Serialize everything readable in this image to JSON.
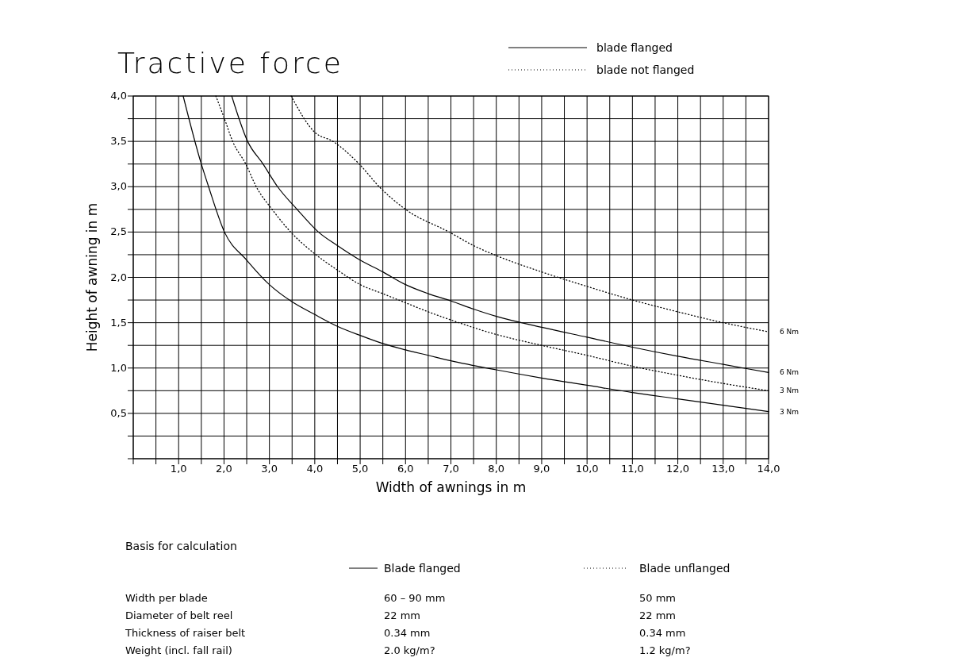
{
  "chart_data": {
    "type": "line",
    "title": "Tractive force",
    "xlabel": "Width of awnings in m",
    "ylabel": "Height of awning in m",
    "xlim": [
      0,
      14
    ],
    "ylim": [
      0,
      4
    ],
    "xticks": [
      {
        "value": 0,
        "label": null
      },
      {
        "value": 0.5,
        "label": null
      },
      {
        "value": 1,
        "label": "1,0"
      },
      {
        "value": 1.5,
        "label": null
      },
      {
        "value": 2,
        "label": "2,0"
      },
      {
        "value": 2.5,
        "label": null
      },
      {
        "value": 3,
        "label": "3,0"
      },
      {
        "value": 3.5,
        "label": null
      },
      {
        "value": 4,
        "label": "4,0"
      },
      {
        "value": 4.5,
        "label": null
      },
      {
        "value": 5,
        "label": "5,0"
      },
      {
        "value": 5.5,
        "label": null
      },
      {
        "value": 6,
        "label": "6,0"
      },
      {
        "value": 6.5,
        "label": null
      },
      {
        "value": 7,
        "label": "7,0"
      },
      {
        "value": 7.5,
        "label": null
      },
      {
        "value": 8,
        "label": "8,0"
      },
      {
        "value": 8.5,
        "label": null
      },
      {
        "value": 9,
        "label": "9,0"
      },
      {
        "value": 9.5,
        "label": null
      },
      {
        "value": 10,
        "label": "10,0"
      },
      {
        "value": 10.5,
        "label": null
      },
      {
        "value": 11,
        "label": "11,0"
      },
      {
        "value": 11.5,
        "label": null
      },
      {
        "value": 12,
        "label": "12,0"
      },
      {
        "value": 12.5,
        "label": null
      },
      {
        "value": 13,
        "label": "13,0"
      },
      {
        "value": 13.5,
        "label": null
      },
      {
        "value": 14,
        "label": "14,0"
      }
    ],
    "yticks": [
      {
        "value": 0,
        "label": null
      },
      {
        "value": 0.25,
        "label": null
      },
      {
        "value": 0.5,
        "label": "0,5"
      },
      {
        "value": 0.75,
        "label": null
      },
      {
        "value": 1,
        "label": "1,0"
      },
      {
        "value": 1.25,
        "label": null
      },
      {
        "value": 1.5,
        "label": "1,5"
      },
      {
        "value": 1.75,
        "label": null
      },
      {
        "value": 2,
        "label": "2,0"
      },
      {
        "value": 2.25,
        "label": null
      },
      {
        "value": 2.5,
        "label": "2,5"
      },
      {
        "value": 2.75,
        "label": null
      },
      {
        "value": 3,
        "label": "3,0"
      },
      {
        "value": 3.25,
        "label": null
      },
      {
        "value": 3.5,
        "label": "3,5"
      },
      {
        "value": 3.75,
        "label": null
      },
      {
        "value": 4,
        "label": "4,0"
      }
    ],
    "grid": true,
    "marker": "none",
    "series": [
      {
        "name": "3 Nm",
        "color": "#000000",
        "line_style": "solid",
        "x": [
          1.1,
          1.5,
          1.66,
          2.01,
          2.5,
          3,
          3.5,
          4,
          4.5,
          5,
          5.5,
          6,
          6.5,
          7,
          8,
          9,
          10,
          11,
          12,
          13,
          14
        ],
        "values": [
          4,
          3.25,
          3,
          2.5,
          2.19,
          1.92,
          1.73,
          1.59,
          1.46,
          1.36,
          1.27,
          1.2,
          1.14,
          1.08,
          0.98,
          0.89,
          0.81,
          0.73,
          0.66,
          0.59,
          0.52
        ]
      },
      {
        "name": "6 Nm",
        "color": "#000000",
        "line_style": "solid",
        "x": [
          2.17,
          2.52,
          2.86,
          3.18,
          3.61,
          4.08,
          4.5,
          5,
          5.5,
          6,
          6.5,
          7,
          7.5,
          8,
          9,
          10,
          11,
          12,
          13,
          14
        ],
        "values": [
          4,
          3.5,
          3.25,
          3,
          2.75,
          2.5,
          2.35,
          2.19,
          2.06,
          1.92,
          1.82,
          1.74,
          1.65,
          1.57,
          1.45,
          1.34,
          1.23,
          1.13,
          1.04,
          0.95
        ]
      },
      {
        "name": "3 Nm",
        "color": "#000000",
        "line_style": "dotted",
        "x": [
          1.82,
          2.01,
          2.19,
          2.48,
          2.71,
          3.06,
          3.47,
          4,
          4.5,
          5,
          5.5,
          6,
          6.5,
          7,
          8,
          9,
          10,
          11,
          12,
          13,
          14
        ],
        "values": [
          4,
          3.75,
          3.5,
          3.25,
          3,
          2.75,
          2.5,
          2.26,
          2.08,
          1.92,
          1.82,
          1.72,
          1.62,
          1.53,
          1.37,
          1.25,
          1.14,
          1.02,
          0.92,
          0.83,
          0.75
        ]
      },
      {
        "name": "6 Nm",
        "color": "#000000",
        "line_style": "dotted",
        "x": [
          3.48,
          4,
          4.4,
          4.98,
          5.42,
          6,
          6.96,
          7.5,
          8,
          9,
          10,
          11,
          12,
          13,
          14
        ],
        "values": [
          4,
          3.6,
          3.5,
          3.25,
          3,
          2.75,
          2.5,
          2.35,
          2.24,
          2.06,
          1.9,
          1.75,
          1.62,
          1.5,
          1.4
        ]
      }
    ],
    "annotations": [
      "blade flanged",
      "blade not flanged",
      "Basis for calculation",
      "Blade flanged",
      "Blade unflanged",
      "Width per blade",
      "60 – 90 mm",
      "50 mm",
      "Diameter of belt reel",
      "22 mm",
      "22 mm",
      "Thickness of raiser belt",
      "0.34 mm",
      "0.34 mm",
      "Weight (incl. fall rail)",
      "2.0 kg/m?",
      "1.2 kg/m?"
    ]
  }
}
